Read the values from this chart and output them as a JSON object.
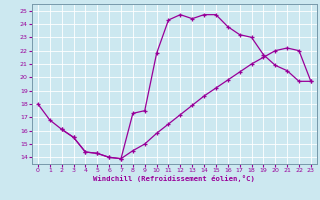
{
  "xlabel": "Windchill (Refroidissement éolien,°C)",
  "bg_color": "#cce8f0",
  "line_color": "#990099",
  "grid_color": "#ffffff",
  "xlim": [
    -0.5,
    23.5
  ],
  "ylim": [
    13.5,
    25.5
  ],
  "xticks": [
    0,
    1,
    2,
    3,
    4,
    5,
    6,
    7,
    8,
    9,
    10,
    11,
    12,
    13,
    14,
    15,
    16,
    17,
    18,
    19,
    20,
    21,
    22,
    23
  ],
  "yticks": [
    14,
    15,
    16,
    17,
    18,
    19,
    20,
    21,
    22,
    23,
    24,
    25
  ],
  "line1_x": [
    0,
    1,
    2,
    3,
    4,
    5,
    6,
    7,
    8,
    9,
    10,
    11,
    12,
    13,
    14,
    15,
    16,
    17,
    18,
    19,
    20,
    21,
    22,
    23
  ],
  "line1_y": [
    18.0,
    16.8,
    16.1,
    15.5,
    14.4,
    14.3,
    14.0,
    13.9,
    17.3,
    17.5,
    21.8,
    24.3,
    24.7,
    24.4,
    24.7,
    24.7,
    23.8,
    23.2,
    23.0,
    21.7,
    20.9,
    20.5,
    19.7,
    19.7
  ],
  "line2_x": [
    2,
    3,
    4,
    5,
    6,
    7,
    8,
    9,
    10,
    11,
    12,
    13,
    14,
    15,
    16,
    17,
    18,
    19,
    20,
    21,
    22,
    23
  ],
  "line2_y": [
    16.1,
    15.5,
    14.4,
    14.3,
    14.0,
    13.9,
    14.5,
    15.0,
    15.8,
    16.5,
    17.2,
    17.9,
    18.6,
    19.2,
    19.8,
    20.4,
    21.0,
    21.5,
    22.0,
    22.2,
    22.0,
    19.7
  ]
}
